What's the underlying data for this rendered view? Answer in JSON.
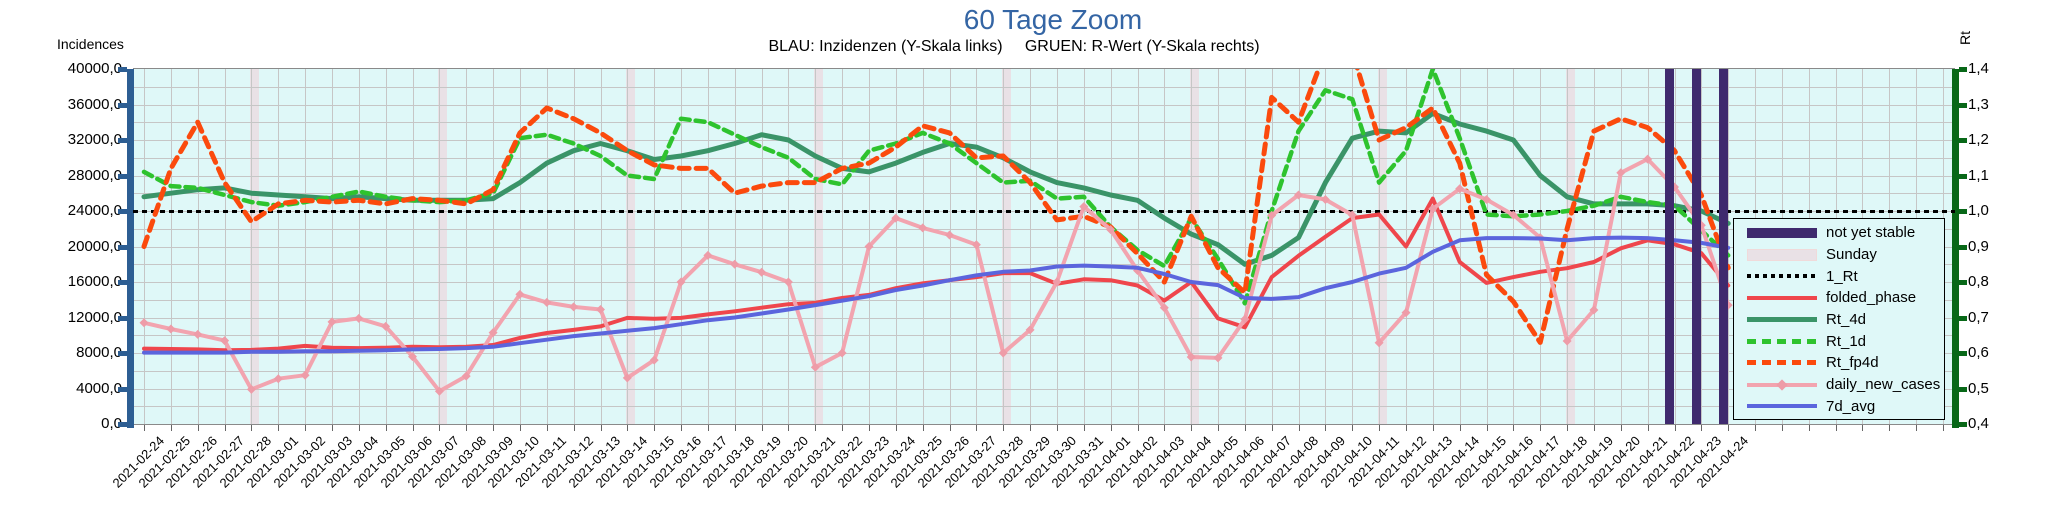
{
  "chart_data": {
    "type": "line",
    "title": "60 Tage Zoom",
    "subtitle": "BLAU: Inzidenzen (Y-Skala links)     GRUEN: R-Wert (Y-Skala rechts)",
    "y_left": {
      "label": "Incidences",
      "min": 0,
      "max": 40000,
      "tick_step": 4000,
      "grid_step": 2000,
      "tick_labels": [
        "40000,0",
        "36000,0",
        "32000,0",
        "28000,0",
        "24000,0",
        "20000,0",
        "16000,0",
        "12000,0",
        "8000,0",
        "4000,0",
        "0,0"
      ]
    },
    "y_right": {
      "label": "Rt",
      "min": 0.4,
      "max": 1.4,
      "tick_step": 0.1,
      "tick_labels": [
        "1,4",
        "1,3",
        "1,2",
        "1,1",
        "1,0",
        "0,9",
        "0,8",
        "0,7",
        "0,6",
        "0,5",
        "0,4"
      ]
    },
    "reference_line": {
      "name": "1_Rt",
      "value": 1.0
    },
    "x": {
      "dates": [
        "2021-02-24",
        "2021-02-25",
        "2021-02-26",
        "2021-02-27",
        "2021-02-28",
        "2021-03-01",
        "2021-03-02",
        "2021-03-03",
        "2021-03-04",
        "2021-03-05",
        "2021-03-06",
        "2021-03-07",
        "2021-03-08",
        "2021-03-09",
        "2021-03-10",
        "2021-03-11",
        "2021-03-12",
        "2021-03-13",
        "2021-03-14",
        "2021-03-15",
        "2021-03-16",
        "2021-03-17",
        "2021-03-18",
        "2021-03-19",
        "2021-03-20",
        "2021-03-21",
        "2021-03-22",
        "2021-03-23",
        "2021-03-24",
        "2021-03-25",
        "2021-03-26",
        "2021-03-27",
        "2021-03-28",
        "2021-03-29",
        "2021-03-30",
        "2021-03-31",
        "2021-04-01",
        "2021-04-02",
        "2021-04-03",
        "2021-04-04",
        "2021-04-05",
        "2021-04-06",
        "2021-04-07",
        "2021-04-08",
        "2021-04-09",
        "2021-04-10",
        "2021-04-11",
        "2021-04-12",
        "2021-04-13",
        "2021-04-14",
        "2021-04-15",
        "2021-04-16",
        "2021-04-17",
        "2021-04-18",
        "2021-04-19",
        "2021-04-20",
        "2021-04-21",
        "2021-04-22",
        "2021-04-23",
        "2021-04-24"
      ],
      "extra_gridline_days": 8
    },
    "sundays": [
      4,
      11,
      18,
      25,
      32,
      39,
      46,
      53
    ],
    "not_yet_stable": [
      57,
      58,
      59
    ],
    "series": [
      {
        "name": "folded_phase",
        "axis": "left",
        "color": "#EF464C",
        "width": 4,
        "dash": null,
        "marker": null,
        "values": [
          8500,
          8450,
          8400,
          8300,
          8350,
          8500,
          8800,
          8600,
          8550,
          8600,
          8700,
          8650,
          8700,
          8900,
          9700,
          10250,
          10600,
          11000,
          11950,
          11850,
          11950,
          12350,
          12700,
          13100,
          13500,
          13650,
          14200,
          14550,
          15300,
          15850,
          16200,
          16550,
          17000,
          17000,
          15800,
          16300,
          16200,
          15600,
          13900,
          16000,
          11900,
          10900,
          16550,
          18950,
          21100,
          23200,
          23600,
          20000,
          25400,
          18250,
          15900,
          16550,
          17150,
          17550,
          18250,
          19800,
          20700,
          20250,
          19250,
          15600
        ]
      },
      {
        "name": "Rt_4d",
        "axis": "right",
        "color": "#3A9468",
        "width": 5,
        "dash": null,
        "marker": null,
        "values": [
          1.04,
          1.05,
          1.06,
          1.065,
          1.05,
          1.045,
          1.04,
          1.035,
          1.04,
          1.035,
          1.03,
          1.03,
          1.03,
          1.035,
          1.08,
          1.135,
          1.17,
          1.19,
          1.17,
          1.145,
          1.155,
          1.17,
          1.19,
          1.215,
          1.2,
          1.155,
          1.12,
          1.11,
          1.135,
          1.165,
          1.19,
          1.18,
          1.15,
          1.11,
          1.08,
          1.065,
          1.045,
          1.03,
          0.98,
          0.935,
          0.905,
          0.85,
          0.875,
          0.925,
          1.08,
          1.205,
          1.225,
          1.22,
          1.275,
          1.245,
          1.225,
          1.2,
          1.1,
          1.04,
          1.02,
          1.02,
          1.02,
          1.015,
          1.0,
          0.965
        ]
      },
      {
        "name": "Rt_1d",
        "axis": "right",
        "color": "#2EC32E",
        "width": 4.5,
        "dash": "9 6",
        "marker": null,
        "values": [
          1.11,
          1.07,
          1.065,
          1.045,
          1.025,
          1.015,
          1.025,
          1.04,
          1.055,
          1.04,
          1.03,
          1.025,
          1.03,
          1.05,
          1.205,
          1.215,
          1.19,
          1.155,
          1.1,
          1.09,
          1.26,
          1.25,
          1.215,
          1.18,
          1.15,
          1.09,
          1.075,
          1.17,
          1.19,
          1.22,
          1.19,
          1.135,
          1.08,
          1.085,
          1.035,
          1.04,
          0.955,
          0.89,
          0.845,
          0.98,
          0.865,
          0.74,
          1.0,
          1.225,
          1.34,
          1.315,
          1.08,
          1.17,
          1.4,
          1.205,
          0.99,
          0.985,
          0.99,
          1.0,
          1.015,
          1.04,
          1.025,
          1.015,
          0.945,
          0.875
        ]
      },
      {
        "name": "Rt_fp4d",
        "axis": "right",
        "color": "#FB4A0D",
        "width": 5,
        "dash": "10 7",
        "marker": null,
        "values": [
          0.9,
          1.12,
          1.25,
          1.08,
          0.97,
          1.02,
          1.03,
          1.025,
          1.03,
          1.02,
          1.035,
          1.03,
          1.02,
          1.06,
          1.22,
          1.29,
          1.26,
          1.22,
          1.17,
          1.13,
          1.12,
          1.12,
          1.05,
          1.07,
          1.08,
          1.08,
          1.12,
          1.135,
          1.18,
          1.24,
          1.22,
          1.15,
          1.155,
          1.08,
          0.975,
          0.985,
          0.955,
          0.88,
          0.8,
          0.985,
          0.84,
          0.77,
          1.32,
          1.25,
          1.45,
          1.45,
          1.2,
          1.235,
          1.29,
          1.135,
          0.82,
          0.745,
          0.63,
          0.95,
          1.225,
          1.26,
          1.235,
          1.17,
          1.045,
          0.84
        ]
      },
      {
        "name": "daily_new_cases",
        "axis": "left",
        "color": "#F2A4AF",
        "width": 4,
        "dash": null,
        "marker": "#EE9CA8",
        "values": [
          11400,
          10700,
          10100,
          9400,
          3900,
          5100,
          5500,
          11500,
          11900,
          11000,
          7600,
          3700,
          5400,
          10300,
          14600,
          13700,
          13200,
          12900,
          5200,
          7200,
          16000,
          19000,
          18000,
          17100,
          16000,
          6400,
          8000,
          20000,
          23200,
          22100,
          21300,
          20200,
          8000,
          10600,
          16000,
          24500,
          21900,
          17300,
          13100,
          7550,
          7450,
          11800,
          23500,
          25800,
          25300,
          23550,
          9150,
          12550,
          24250,
          26500,
          25300,
          23550,
          21000,
          9350,
          12850,
          28300,
          29850,
          26700,
          22400,
          13400
        ]
      },
      {
        "name": "7d_avg",
        "axis": "left",
        "color": "#5B65DD",
        "width": 4,
        "dash": null,
        "marker": null,
        "values": [
          8050,
          8050,
          8050,
          8050,
          8150,
          8150,
          8200,
          8200,
          8250,
          8300,
          8400,
          8450,
          8550,
          8700,
          9100,
          9500,
          9900,
          10200,
          10500,
          10800,
          11250,
          11700,
          12000,
          12450,
          12900,
          13400,
          13900,
          14400,
          15100,
          15600,
          16200,
          16750,
          17150,
          17300,
          17750,
          17850,
          17750,
          17600,
          16900,
          16000,
          15650,
          14200,
          14100,
          14300,
          15300,
          16000,
          16950,
          17600,
          19400,
          20700,
          20950,
          20950,
          20900,
          20700,
          20950,
          21000,
          20950,
          20700,
          20400,
          19850
        ]
      }
    ],
    "legend": {
      "position": "bottom-right-inside",
      "items": [
        {
          "label": "not yet stable",
          "swatch": "bar",
          "color": "#3F2A6E"
        },
        {
          "label": "Sunday",
          "swatch": "bar",
          "color": "#E9E1E6"
        },
        {
          "label": "1_Rt",
          "swatch": "dotted",
          "color": "#000000"
        },
        {
          "label": "folded_phase",
          "swatch": "line",
          "color": "#EF464C",
          "height": 4
        },
        {
          "label": "Rt_4d",
          "swatch": "line",
          "color": "#3A9468",
          "height": 5
        },
        {
          "label": "Rt_1d",
          "swatch": "dashed",
          "color": "#2EC32E",
          "height": 5
        },
        {
          "label": "Rt_fp4d",
          "swatch": "dashed",
          "color": "#FB4A0D",
          "height": 5
        },
        {
          "label": "daily_new_cases",
          "swatch": "line-marker",
          "color": "#F2A4AF",
          "height": 4
        },
        {
          "label": "7d_avg",
          "swatch": "line",
          "color": "#5B65DD",
          "height": 4
        }
      ]
    },
    "layout": {
      "grid": true,
      "plot_bg": "#DFF8F8",
      "grid_color": "#C6C6C6",
      "title_color": "#3465A4",
      "left_axis_color": "#2D5E93",
      "right_axis_color": "#086818"
    }
  }
}
